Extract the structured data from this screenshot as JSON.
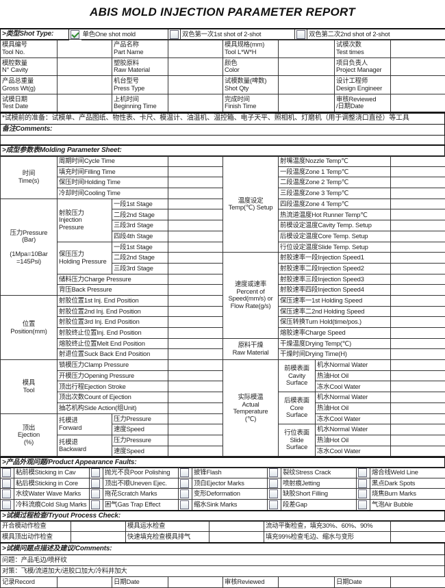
{
  "title": "ABIS MOLD INJECTION PARAMETER REPORT",
  "shot_type": {
    "label": ">类型Shot Type:",
    "options": [
      {
        "label": "单色One shot mold",
        "checked": true
      },
      {
        "label": "双色第一次1st shot of 2-shot",
        "checked": false
      },
      {
        "label": "双色第二次2nd shot of 2-shot",
        "checked": false
      }
    ]
  },
  "info": [
    [
      "模具编号",
      "Tool No.",
      "产品名称",
      "Part Name",
      "模具规格(mm)",
      "Tool L*W*H",
      "试模次数",
      "Test times"
    ],
    [
      "模腔数量",
      "N° Cavity",
      "塑胶原料",
      "Raw Material",
      "颜色",
      "Color",
      "项目负责人",
      "Project Manager"
    ],
    [
      "产品总重量",
      "Gross Wt(g)",
      "机台型号",
      "Press Type",
      "试模数量(啤数)",
      "Shot Qty",
      "设计工程师",
      "Design Engineer"
    ],
    [
      "试模日期",
      "Test Date",
      "上机时间",
      "Beginning Time",
      "完成时间",
      "Finish Time",
      "审核Reviewed",
      "/日期Date"
    ]
  ],
  "tools_note": "*试模前的准备：试模单、产品图纸、物性表、卡尺、模温计、油温机、温控箱、电子天平、照相机、灯磨机（用于调整浇口直径）等工具",
  "comments_label": "备注Comments:",
  "molding": {
    "header": ">成型参数表Molding Parameter Sheet:",
    "left": [
      {
        "label": "时间\nTime(s)",
        "rows": [
          "周期时间Cycle Time",
          "填充时间Filling Time",
          "保压时间Holding Time",
          "冷却时间Cooling Time"
        ]
      },
      {
        "label": "压力Pressure\n(Bar)\n\n(1Mpa=10Bar\n=145Psi)",
        "rows": [
          {
            "label": "射胶压力\nInjection\nPressure",
            "items": [
              "一段1st Stage",
              "二段2nd Stage",
              "三段3rd Stage",
              "四段4th Stage"
            ]
          },
          {
            "label": "保压压力\nHolding Pressure",
            "items": [
              "一段1st Stage",
              "二段2nd Stage",
              "三段3rd Stage"
            ]
          },
          "储料压力Charge Pressure",
          "背压Back Pressure"
        ]
      },
      {
        "label": "位置\nPosition(mm)",
        "rows": [
          "射胶位置1st Inj. End Position",
          "射胶位置2nd Inj. End Position",
          "射胶位置3rd Inj. End Position",
          "射胶终止位置Inj. End Position",
          "熔胶终止位置Melt End Position",
          "射退位置Suck Back End Position"
        ]
      },
      {
        "label": "模具\nTool",
        "rows": [
          "锁模压力Clamp Pressure",
          "开模压力Opening Pressure",
          "顶出行程Ejection Stroke",
          "顶出次数Count of Ejection",
          "抽芯机构Side Action(组Unit)"
        ]
      },
      {
        "label": "顶出\nEjection\n(%)",
        "rows": [
          {
            "label": "托模进\nForward",
            "items": [
              "压力Pressure",
              "速度Speed"
            ]
          },
          {
            "label": "托模退\nBackward",
            "items": [
              "压力Pressure",
              "速度Speed"
            ]
          }
        ]
      }
    ],
    "right": [
      {
        "label": "温度设定\nTemp(℃) Setup",
        "rows": [
          "射嘴温度Nozzle Temp℃",
          "一段温度Zone 1 Temp℃",
          "二段温度Zone 2 Temp℃",
          "三段温度Zone 3 Temp℃",
          "四段温度Zone 4 Temp℃",
          "热流道温度Hot Runner Temp℃",
          "前模设定温度Cavity Temp. Setup",
          "后模设定温度Core Temp. Setup",
          "行位设定温度Slide Temp. Setup"
        ]
      },
      {
        "label": "速度或速率\nPercent of\nSpeed(mm/s) or\nFlow Rate(g/s)",
        "rows": [
          "射胶速率一段Injection Speed1",
          "射胶速率二段Injection Speed2",
          "射胶速率三段Injection Speed3",
          "射胶速率四段Injection Speed4",
          "保压速率一1st Holding Speed",
          "保压速率二2nd Holding Speed",
          "保压转换Turn Hold(time/pos.)",
          "熔胶速率Charge Speed"
        ]
      },
      {
        "label": "原料干燥\nRaw Material",
        "rows": [
          "干燥温度Drying Temp(℃)",
          "干燥时间Drying Time(H)"
        ]
      },
      {
        "label": "实际模温\nActual\nTemperature\n(℃)",
        "rows": [
          {
            "label": "前模表面\nCavity\nSurface",
            "items": [
              "机水Normal Water",
              "热油Hot Oil",
              "冻水Cool Water"
            ]
          },
          {
            "label": "后模表面\nCore\nSurface",
            "items": [
              "机水Normal Water",
              "热油Hot Oil",
              "冻水Cool Water"
            ]
          },
          {
            "label": "行位表面\nSlide\nSurface",
            "items": [
              "机水Normal Water",
              "热油Hot Oil",
              "冻水Cool Water"
            ]
          }
        ]
      }
    ]
  },
  "faults": {
    "header": ">产品外观问题/Product Appearance Faults:",
    "rows": [
      [
        "粘前模Sticking in Cav",
        "抛光不良Poor Polishing",
        "披锋Flash",
        "裂纹Stress Crack",
        "熔合线Weld Line"
      ],
      [
        "粘后模Sticking in Core",
        "顶出不顺Uneven Ejec.",
        "顶白Ejector Marks",
        "喷射痕Jetting",
        "黑点Dark Spots"
      ],
      [
        "水纹Water Wave Marks",
        "拖花Scratch Marks",
        "变形Deformation",
        "缺胶Short Filling",
        "烧焦Burn Marks"
      ],
      [
        "冷料流痕Cold Slug Marks",
        "困气Gas Trap Effect",
        "缩水Sink Marks",
        "段差Gap",
        "气泡Air Bubble"
      ]
    ]
  },
  "tryout": {
    "header": ">试模过程检查/Tryout Process Check:",
    "rows": [
      [
        "开合模动作检查",
        "模具运水检查",
        "流动平衡检查，填充30%、60%、90%"
      ],
      [
        "模具顶出动作检查",
        "快速填充检查模具排气",
        "填充99%检查毛边、缩水与变形"
      ]
    ]
  },
  "comments": {
    "header": ">试模问题点描述及建议/Comments:",
    "lines": [
      "问题：产品毛边/喷杯纹",
      "对策：飞模/流道加大/进胶口加大/冷料井加大"
    ]
  },
  "footer": [
    "记录Record",
    "日期Date",
    "审核Reviewed",
    "日期Date"
  ]
}
